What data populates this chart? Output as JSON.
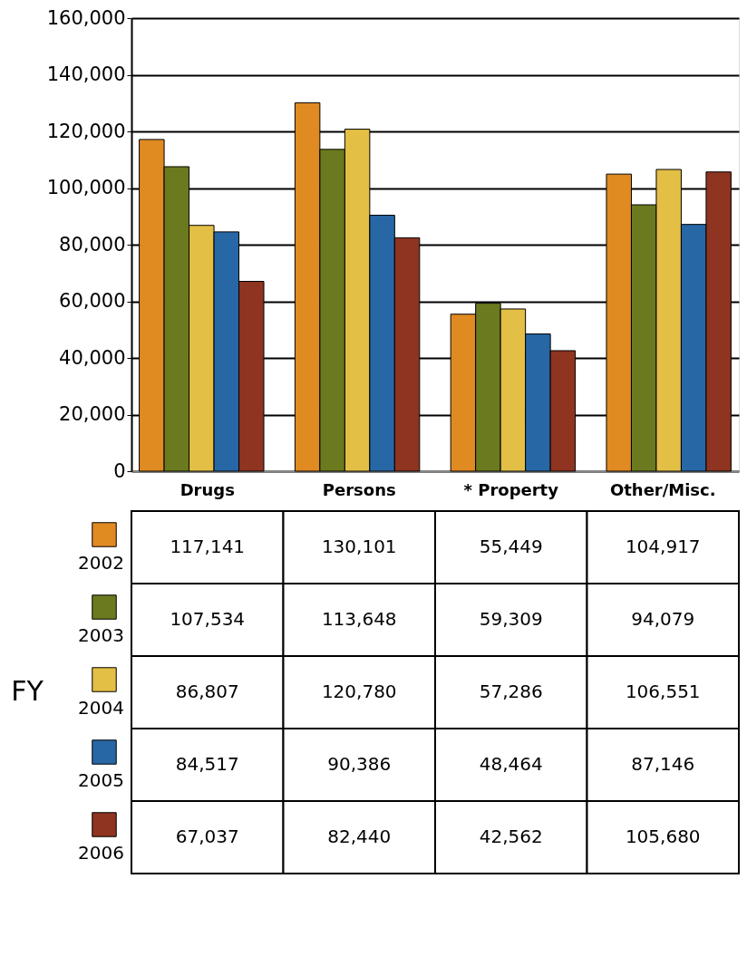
{
  "chart_data": {
    "type": "bar",
    "categories": [
      "Drugs",
      "Persons",
      "* Property",
      "Other/Misc."
    ],
    "series": [
      {
        "name": "2002",
        "color": "#e08a22",
        "values": [
          117141,
          130101,
          55449,
          104917
        ],
        "value_labels": [
          "117,141",
          "130,101",
          "55,449",
          "104,917"
        ]
      },
      {
        "name": "2003",
        "color": "#6b7a1f",
        "values": [
          107534,
          113648,
          59309,
          94079
        ],
        "value_labels": [
          "107,534",
          "113,648",
          "59,309",
          "94,079"
        ]
      },
      {
        "name": "2004",
        "color": "#e3bf45",
        "values": [
          86807,
          120780,
          57286,
          106551
        ],
        "value_labels": [
          "86,807",
          "120,780",
          "57,286",
          "106,551"
        ]
      },
      {
        "name": "2005",
        "color": "#2767a5",
        "values": [
          84517,
          90386,
          48464,
          87146
        ],
        "value_labels": [
          "84,517",
          "90,386",
          "48,464",
          "87,146"
        ]
      },
      {
        "name": "2006",
        "color": "#8e3420",
        "values": [
          67037,
          82440,
          42562,
          105680
        ],
        "value_labels": [
          "67,037",
          "82,440",
          "42,562",
          "105,680"
        ]
      }
    ],
    "legend_title": "FY",
    "ylim": [
      0,
      160000
    ],
    "yticks": [
      {
        "value": 0,
        "label": "0"
      },
      {
        "value": 20000,
        "label": "20,000"
      },
      {
        "value": 40000,
        "label": "40,000"
      },
      {
        "value": 60000,
        "label": "60,000"
      },
      {
        "value": 80000,
        "label": "80,000"
      },
      {
        "value": 100000,
        "label": "100,000"
      },
      {
        "value": 120000,
        "label": "120,000"
      },
      {
        "value": 140000,
        "label": "140,000"
      },
      {
        "value": 160000,
        "label": "160,000"
      }
    ],
    "grid": "y",
    "legend": "bottom"
  }
}
